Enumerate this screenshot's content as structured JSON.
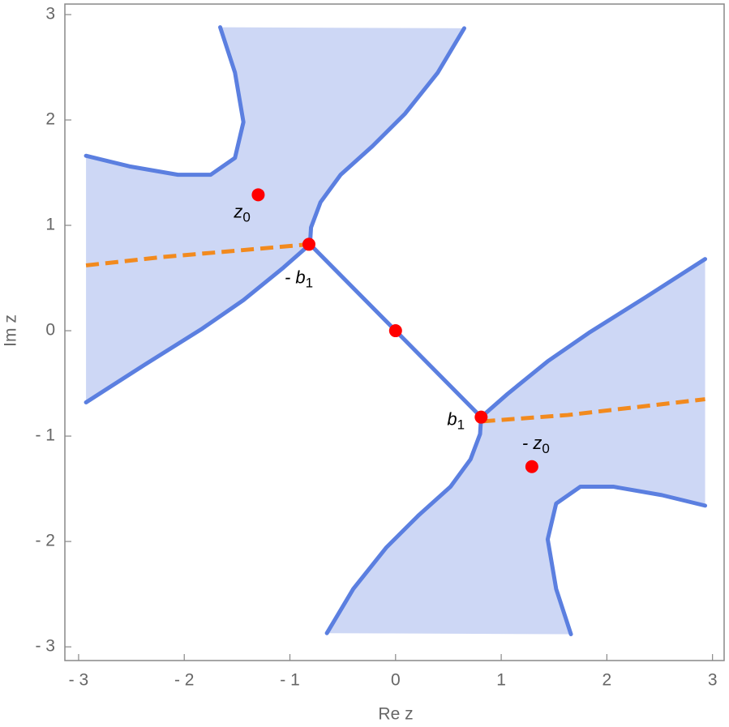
{
  "chart_data": {
    "type": "line",
    "xlabel": "Re z",
    "ylabel": "Im z",
    "xlim": [
      -3.13,
      3.11
    ],
    "ylim": [
      -3.13,
      3.1
    ],
    "xticks": [
      {
        "value": -3,
        "label": "- 3"
      },
      {
        "value": -2,
        "label": "- 2"
      },
      {
        "value": -1,
        "label": "- 1"
      },
      0,
      1,
      2,
      3
    ],
    "yticks": [
      {
        "value": -3,
        "label": "- 3"
      },
      {
        "value": -2,
        "label": "- 2"
      },
      {
        "value": -1,
        "label": "- 1"
      },
      0,
      1,
      2,
      3
    ],
    "region_color": "#c8d3f4",
    "series": [
      {
        "color": "#5b7fe0",
        "dashed": false,
        "x": [
          -1.66,
          -1.52,
          -1.44,
          -1.52,
          -1.75,
          -2.06,
          -2.52,
          -2.93
        ],
        "y": [
          2.88,
          2.45,
          1.98,
          1.64,
          1.48,
          1.48,
          1.56,
          1.66
        ]
      },
      {
        "color": "#5b7fe0",
        "dashed": false,
        "x": [
          0.65,
          0.4,
          0.09,
          -0.22,
          -0.52,
          -0.71,
          -0.8,
          -0.81,
          -1.06,
          -1.44,
          -1.83,
          -2.37,
          -2.93
        ],
        "y": [
          2.87,
          2.45,
          2.06,
          1.75,
          1.48,
          1.22,
          0.98,
          0.82,
          0.6,
          0.29,
          0.02,
          -0.32,
          -0.68
        ]
      },
      {
        "color": "#5b7fe0",
        "dashed": false,
        "x": [
          -0.81,
          0.81
        ],
        "y": [
          0.82,
          -0.82
        ]
      },
      {
        "color": "#5b7fe0",
        "dashed": false,
        "x": [
          1.66,
          1.52,
          1.44,
          1.52,
          1.75,
          2.06,
          2.52,
          2.93
        ],
        "y": [
          -2.88,
          -2.45,
          -1.98,
          -1.64,
          -1.48,
          -1.48,
          -1.56,
          -1.66
        ]
      },
      {
        "color": "#5b7fe0",
        "dashed": false,
        "x": [
          -0.65,
          -0.4,
          -0.09,
          0.22,
          0.52,
          0.71,
          0.8,
          0.81,
          1.06,
          1.44,
          1.83,
          2.37,
          2.93
        ],
        "y": [
          -2.87,
          -2.45,
          -2.06,
          -1.75,
          -1.48,
          -1.22,
          -0.98,
          -0.82,
          -0.6,
          -0.29,
          -0.02,
          0.32,
          0.68
        ]
      },
      {
        "color": "#f28a1e",
        "dashed": true,
        "x": [
          -2.93,
          -2.2,
          -1.5,
          -0.82
        ],
        "y": [
          0.62,
          0.7,
          0.76,
          0.82
        ]
      },
      {
        "color": "#f28a1e",
        "dashed": true,
        "x": [
          0.82,
          1.63,
          2.93
        ],
        "y": [
          -0.86,
          -0.8,
          -0.65
        ]
      }
    ],
    "point_color": "#ff0000",
    "points": [
      {
        "x": -1.3,
        "y": 1.29,
        "label": "z",
        "subscript": "0"
      },
      {
        "x": -0.82,
        "y": 0.82,
        "label": "- b",
        "subscript": "1"
      },
      {
        "x": 0,
        "y": 0
      },
      {
        "x": 0.81,
        "y": -0.82,
        "label": "b",
        "subscript": "1"
      },
      {
        "x": 1.29,
        "y": -1.29,
        "label": "- z",
        "subscript": "0"
      }
    ]
  }
}
